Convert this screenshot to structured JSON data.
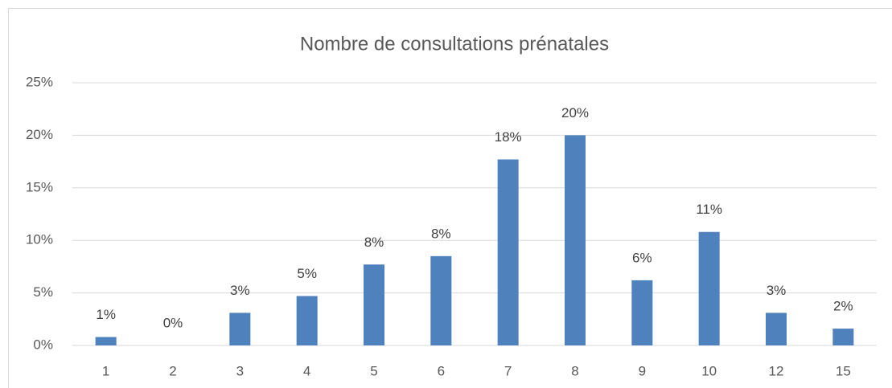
{
  "chart_data": {
    "type": "bar",
    "title": "Nombre de consultations prénatales",
    "categories": [
      "1",
      "2",
      "3",
      "4",
      "5",
      "6",
      "7",
      "8",
      "9",
      "10",
      "12",
      "15"
    ],
    "values": [
      0.8,
      0,
      3.1,
      4.7,
      7.7,
      8.5,
      17.7,
      20.0,
      6.2,
      10.8,
      3.1,
      1.6
    ],
    "value_labels": [
      "1%",
      "0%",
      "3%",
      "5%",
      "8%",
      "8%",
      "18%",
      "20%",
      "6%",
      "11%",
      "3%",
      "2%"
    ],
    "color": "#4f81bd",
    "ylim": [
      0,
      25
    ],
    "yticks": [
      {
        "value": 0,
        "label": "0%"
      },
      {
        "value": 5,
        "label": "5%"
      },
      {
        "value": 10,
        "label": "10%"
      },
      {
        "value": 15,
        "label": "15%"
      },
      {
        "value": 20,
        "label": "20%"
      },
      {
        "value": 25,
        "label": "25%"
      }
    ],
    "grid": true
  }
}
